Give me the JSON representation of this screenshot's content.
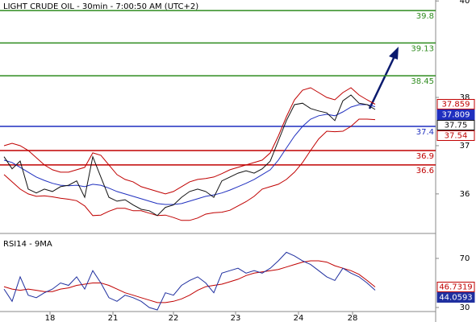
{
  "chart_data": [
    {
      "type": "line",
      "title": "LIGHT CRUDE OIL - 30min - 7:00:50 AM (UTC+2)",
      "x": [
        0,
        1,
        2,
        3,
        4,
        5,
        6,
        7,
        8,
        9,
        10,
        11,
        12,
        13,
        14,
        15,
        16,
        17,
        18,
        19,
        20,
        21,
        22,
        23,
        24,
        25,
        26,
        27,
        28,
        29,
        30,
        31,
        32,
        33,
        34,
        35,
        36,
        37,
        38,
        39,
        40,
        41,
        42,
        43,
        44,
        45,
        46
      ],
      "xlim": [
        -0.5,
        53.5
      ],
      "xticks": [
        {
          "value": 5.7,
          "label": "18"
        },
        {
          "value": 13.5,
          "label": "21"
        },
        {
          "value": 21,
          "label": "22"
        },
        {
          "value": 28.7,
          "label": "23"
        },
        {
          "value": 36.5,
          "label": "24"
        },
        {
          "value": 43.2,
          "label": "28"
        }
      ],
      "ylim": [
        35.18,
        40.02
      ],
      "yticks": [
        36,
        37,
        38,
        40
      ],
      "series": [
        {
          "color": "#c00000",
          "values": [
            37.0,
            37.05,
            37.0,
            36.9,
            36.75,
            36.6,
            36.5,
            36.45,
            36.45,
            36.5,
            36.55,
            36.85,
            36.8,
            36.6,
            36.4,
            36.3,
            36.25,
            36.15,
            36.1,
            36.05,
            36.0,
            36.05,
            36.15,
            36.25,
            36.3,
            36.32,
            36.35,
            36.42,
            36.5,
            36.55,
            36.6,
            36.65,
            36.7,
            36.85,
            37.2,
            37.6,
            37.95,
            38.15,
            38.2,
            38.1,
            38.0,
            37.95,
            38.1,
            38.2,
            38.05,
            37.95,
            37.859
          ]
        },
        {
          "color": "#c00000",
          "values": [
            36.4,
            36.25,
            36.1,
            36.0,
            35.95,
            35.96,
            35.94,
            35.91,
            35.89,
            35.86,
            35.75,
            35.55,
            35.56,
            35.64,
            35.7,
            35.7,
            35.65,
            35.65,
            35.6,
            35.55,
            35.56,
            35.51,
            35.45,
            35.45,
            35.5,
            35.58,
            35.61,
            35.62,
            35.66,
            35.75,
            35.84,
            35.95,
            36.1,
            36.15,
            36.2,
            36.3,
            36.45,
            36.65,
            36.9,
            37.14,
            37.3,
            37.29,
            37.3,
            37.4,
            37.55,
            37.55,
            37.54
          ]
        },
        {
          "color": "#1f2fbf",
          "values": [
            36.7,
            36.65,
            36.55,
            36.45,
            36.35,
            36.28,
            36.22,
            36.18,
            36.17,
            36.18,
            36.15,
            36.2,
            36.18,
            36.12,
            36.05,
            36.0,
            35.95,
            35.9,
            35.85,
            35.8,
            35.78,
            35.78,
            35.8,
            35.85,
            35.9,
            35.95,
            35.98,
            36.02,
            36.08,
            36.15,
            36.22,
            36.3,
            36.4,
            36.5,
            36.7,
            36.95,
            37.2,
            37.4,
            37.55,
            37.62,
            37.65,
            37.62,
            37.7,
            37.8,
            37.85,
            37.85,
            37.809
          ]
        },
        {
          "color": "#111111",
          "values": [
            36.77,
            36.52,
            36.68,
            36.1,
            36.02,
            36.1,
            36.05,
            36.15,
            36.18,
            36.27,
            35.93,
            36.77,
            36.35,
            35.93,
            35.85,
            35.88,
            35.77,
            35.68,
            35.65,
            35.55,
            35.72,
            35.77,
            35.93,
            36.05,
            36.1,
            36.05,
            35.93,
            36.27,
            36.35,
            36.43,
            36.48,
            36.43,
            36.52,
            36.68,
            37.1,
            37.52,
            37.85,
            37.88,
            37.77,
            37.72,
            37.68,
            37.52,
            37.93,
            38.05,
            37.88,
            37.85,
            37.75
          ]
        }
      ],
      "levels": [
        39.8,
        39.13,
        38.45,
        37.4,
        36.9,
        36.6
      ],
      "level_colors": [
        "#2e8b1e",
        "#2e8b1e",
        "#2e8b1e",
        "#1f2fbf",
        "#c00000",
        "#c00000"
      ]
    },
    {
      "type": "line",
      "title": "RSI14 - 9MA",
      "x": [
        0,
        1,
        2,
        3,
        4,
        5,
        6,
        7,
        8,
        9,
        10,
        11,
        12,
        13,
        14,
        15,
        16,
        17,
        18,
        19,
        20,
        21,
        22,
        23,
        24,
        25,
        26,
        27,
        28,
        29,
        30,
        31,
        32,
        33,
        34,
        35,
        36,
        37,
        38,
        39,
        40,
        41,
        42,
        43,
        44,
        45,
        46
      ],
      "xlim": [
        -0.5,
        53.5
      ],
      "ylim": [
        26.7,
        86.4
      ],
      "yticks": [
        30,
        70
      ],
      "series": [
        {
          "color": "#c00000",
          "values": [
            47,
            45,
            44,
            45,
            44,
            43,
            43,
            45,
            46,
            48,
            49,
            50,
            50,
            48,
            45,
            42,
            40,
            38,
            36,
            34,
            34,
            35,
            37,
            40,
            44,
            47,
            48,
            49,
            51,
            53,
            56,
            58,
            59,
            60,
            61,
            63,
            65,
            67,
            68,
            68,
            67,
            64,
            62,
            60,
            57,
            52,
            46.7319
          ]
        },
        {
          "color": "#1f2f9f",
          "values": [
            45,
            35,
            55,
            40,
            38,
            42,
            45,
            50,
            48,
            55,
            45,
            60,
            50,
            38,
            35,
            40,
            38,
            35,
            30,
            28,
            42,
            40,
            48,
            52,
            55,
            50,
            42,
            58,
            60,
            62,
            58,
            60,
            58,
            62,
            68,
            75,
            72,
            68,
            65,
            60,
            55,
            52,
            62,
            58,
            55,
            50,
            44.0593
          ]
        }
      ]
    }
  ]
}
